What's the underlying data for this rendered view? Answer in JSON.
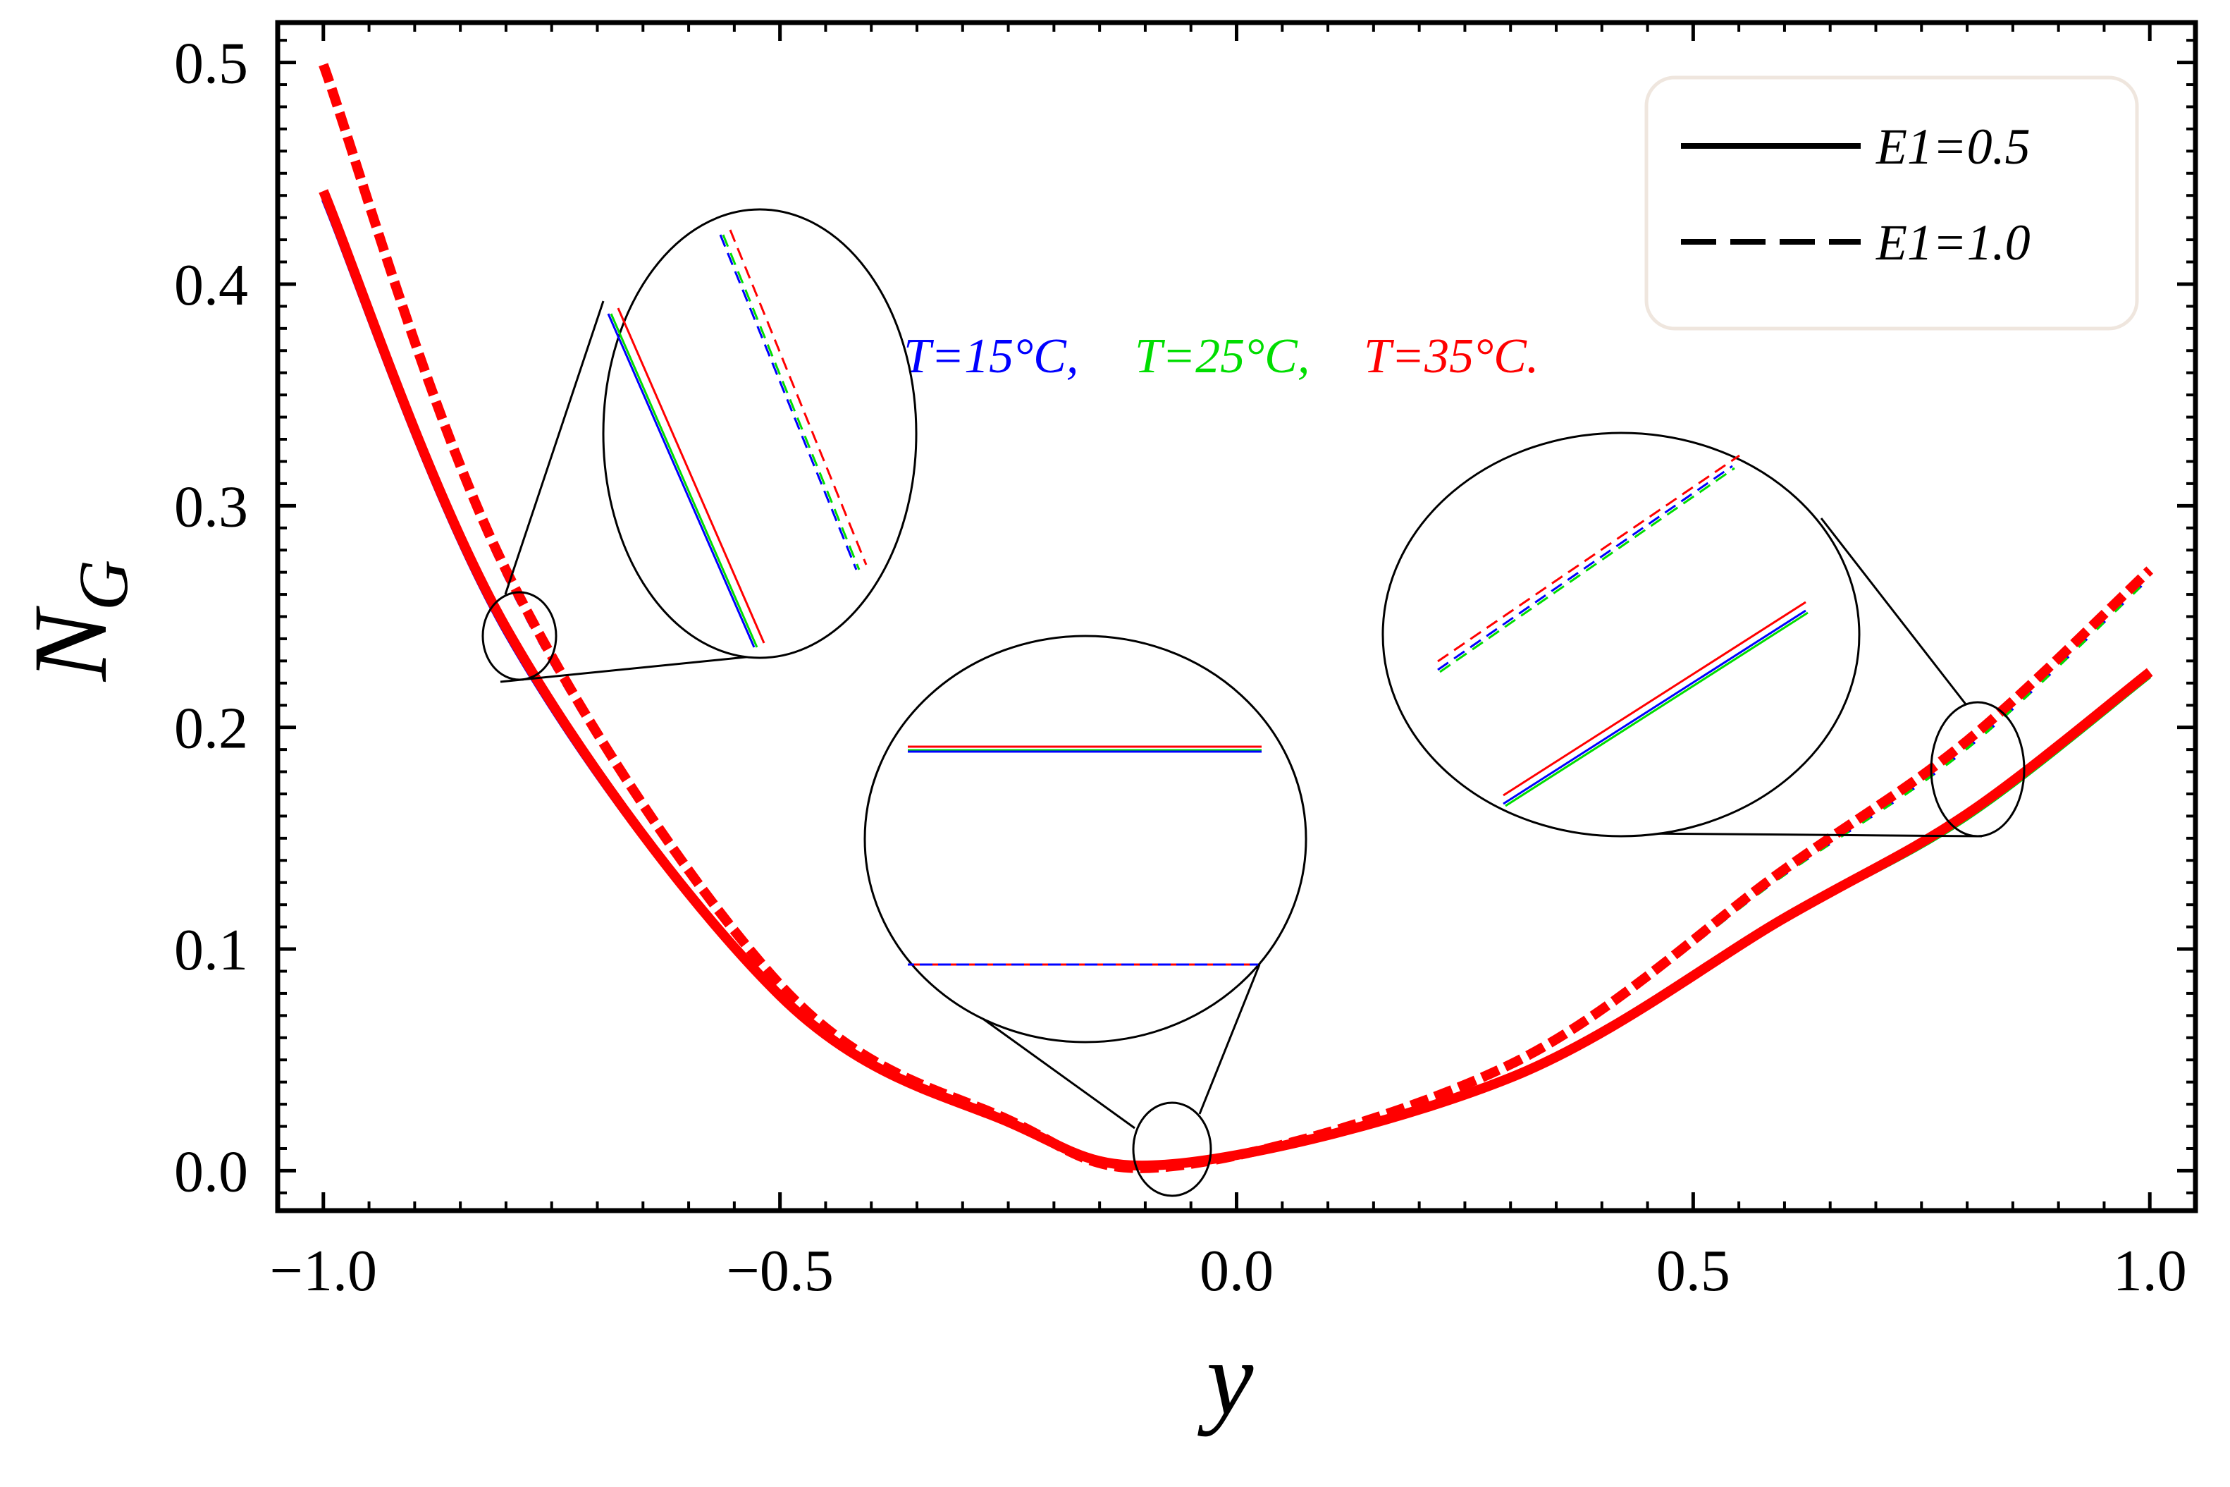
{
  "chart_data": {
    "type": "line",
    "title": "",
    "xlabel": "y",
    "ylabel": "N",
    "ylabel_subscript": "G",
    "xlim": [
      -1.05,
      1.05
    ],
    "ylim": [
      -0.018,
      0.518
    ],
    "x_ticks": [
      -1.0,
      -0.5,
      0.0,
      0.5,
      1.0
    ],
    "x_tick_labels": [
      "−1.0",
      "−0.5",
      "0.0",
      "0.5",
      "1.0"
    ],
    "y_ticks": [
      0.0,
      0.1,
      0.2,
      0.3,
      0.4,
      0.5
    ],
    "y_tick_labels": [
      "0.0",
      "0.1",
      "0.2",
      "0.3",
      "0.4",
      "0.5"
    ],
    "grid": false,
    "legend": {
      "position": "top-right",
      "entries": [
        {
          "label": "E1=0.5",
          "style": "solid"
        },
        {
          "label": "E1=1.0",
          "style": "dashed"
        }
      ]
    },
    "annotation": [
      {
        "text": "T=15°C,",
        "color": "#0000ff"
      },
      {
        "text": "T=25°C,",
        "color": "#00dd00"
      },
      {
        "text": "T=35°C.",
        "color": "#ff0000"
      }
    ],
    "series": [
      {
        "name": "E1=0.5, T=15°C",
        "style": "solid",
        "color": "#0000ff",
        "x": [
          -1.0,
          -0.8,
          -0.5,
          -0.25,
          -0.07,
          0.3,
          0.6,
          0.8,
          1.0
        ],
        "y": [
          0.438,
          0.242,
          0.078,
          0.022,
          0.003,
          0.041,
          0.113,
          0.159,
          0.223
        ]
      },
      {
        "name": "E1=0.5, T=25°C",
        "style": "solid",
        "color": "#00dd00",
        "x": [
          -1.0,
          -0.8,
          -0.5,
          -0.25,
          -0.07,
          0.3,
          0.6,
          0.8,
          1.0
        ],
        "y": [
          0.439,
          0.243,
          0.078,
          0.022,
          0.003,
          0.041,
          0.113,
          0.159,
          0.223
        ]
      },
      {
        "name": "E1=0.5, T=35°C",
        "style": "solid",
        "color": "#ff0000",
        "x": [
          -1.0,
          -0.8,
          -0.5,
          -0.25,
          -0.07,
          0.3,
          0.6,
          0.8,
          1.0
        ],
        "y": [
          0.442,
          0.245,
          0.079,
          0.022,
          0.003,
          0.042,
          0.114,
          0.161,
          0.225
        ]
      },
      {
        "name": "E1=1.0, T=15°C",
        "style": "dashed",
        "color": "#0000ff",
        "x": [
          -1.0,
          -0.8,
          -0.5,
          -0.25,
          -0.07,
          0.3,
          0.6,
          0.8,
          1.0
        ],
        "y": [
          0.496,
          0.268,
          0.083,
          0.022,
          0.002,
          0.047,
          0.134,
          0.191,
          0.268
        ]
      },
      {
        "name": "E1=1.0, T=25°C",
        "style": "dashed",
        "color": "#00dd00",
        "x": [
          -1.0,
          -0.8,
          -0.5,
          -0.25,
          -0.07,
          0.3,
          0.6,
          0.8,
          1.0
        ],
        "y": [
          0.497,
          0.269,
          0.083,
          0.022,
          0.002,
          0.047,
          0.134,
          0.191,
          0.268
        ]
      },
      {
        "name": "E1=1.0, T=35°C",
        "style": "dashed",
        "color": "#ff0000",
        "x": [
          -1.0,
          -0.8,
          -0.5,
          -0.25,
          -0.07,
          0.3,
          0.6,
          0.8,
          1.0
        ],
        "y": [
          0.499,
          0.271,
          0.084,
          0.023,
          0.002,
          0.048,
          0.136,
          0.194,
          0.271
        ]
      }
    ]
  }
}
